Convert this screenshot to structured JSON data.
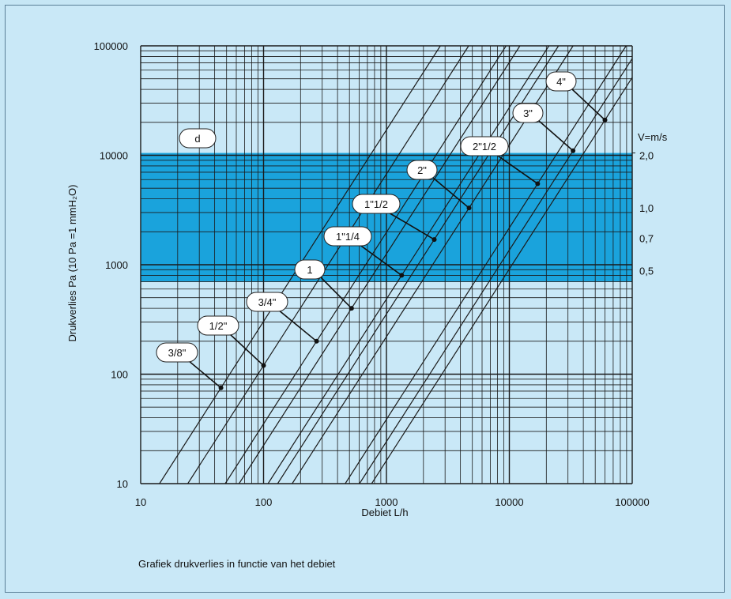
{
  "chart_data": {
    "type": "line",
    "scale": "log-log",
    "xlabel": "Debiet L/h",
    "ylabel": "Drukverlies Pa (10 Pa =1 mmH₂O)",
    "caption": "Grafiek drukverlies in functie van het debiet",
    "xlim": [
      10,
      100000
    ],
    "ylim": [
      10,
      100000
    ],
    "x_ticks": [
      "10",
      "100",
      "1000",
      "10000",
      "100000"
    ],
    "y_ticks": [
      "100000",
      "10000",
      "1000",
      "100",
      "10"
    ],
    "velocity_axis": {
      "title": "V=m/s",
      "labels": [
        {
          "text": "2,0",
          "pa": 10000
        },
        {
          "text": "1,0",
          "pa": 3300
        },
        {
          "text": "0,7",
          "pa": 1750
        },
        {
          "text": "0,5",
          "pa": 880
        }
      ]
    },
    "velocity_band": {
      "pa_min": 700,
      "pa_max": 10500,
      "color": "#1aa3dc"
    },
    "band_label": "d",
    "pipes": [
      {
        "name": "3/8\"",
        "point": [
          45,
          75
        ]
      },
      {
        "name": "1/2\"",
        "point": [
          100,
          120
        ]
      },
      {
        "name": "3/4\"",
        "point": [
          270,
          200
        ]
      },
      {
        "name": "1",
        "point": [
          520,
          400
        ]
      },
      {
        "name": "1\"1/4",
        "point": [
          1330,
          800
        ]
      },
      {
        "name": "1\"1/2",
        "point": [
          2450,
          1700
        ]
      },
      {
        "name": "2\"",
        "point": [
          4700,
          3300
        ]
      },
      {
        "name": "2\"1/2",
        "point": [
          17000,
          5500
        ]
      },
      {
        "name": "3\"",
        "point": [
          33000,
          11000
        ]
      },
      {
        "name": "4\"",
        "point": [
          60000,
          21000
        ]
      }
    ],
    "grid": true,
    "colors": {
      "background": "#c9e8f7",
      "band": "#1aa3dc",
      "grid": "#1b1b1b"
    }
  }
}
